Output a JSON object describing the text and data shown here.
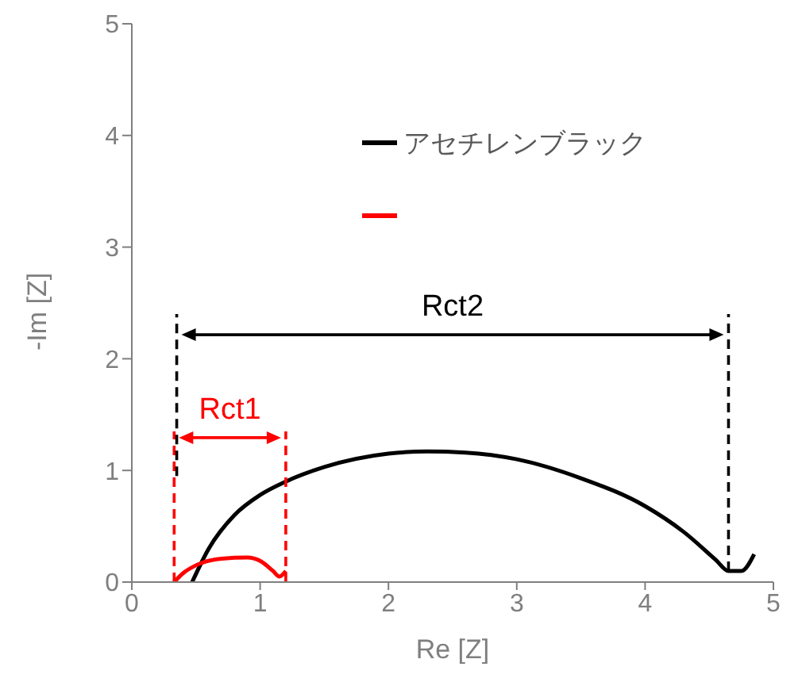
{
  "chart_data": {
    "type": "line",
    "xlabel": "Re [Z]",
    "ylabel": "-Im [Z]",
    "xlim": [
      0,
      5
    ],
    "xticks": [
      0,
      1,
      2,
      3,
      4,
      5
    ],
    "ylim": [
      0,
      5
    ],
    "yticks": [
      0,
      1,
      2,
      3,
      4,
      5
    ],
    "legend": "top right",
    "marker": "none",
    "series": [
      {
        "name": "アセチレンブラック",
        "color": "#000000",
        "x": [
          0.47,
          0.6,
          0.8,
          1.0,
          1.2,
          1.5,
          2.0,
          2.3,
          2.6,
          3.0,
          3.5,
          4.0,
          4.3,
          4.55,
          4.65,
          4.75,
          4.85
        ],
        "values": [
          0,
          0.3,
          0.6,
          0.78,
          0.9,
          1.03,
          1.15,
          1.17,
          1.16,
          1.1,
          0.93,
          0.68,
          0.45,
          0.2,
          0.1,
          0.1,
          0.25
        ]
      },
      {
        "color": "#ff0000",
        "x": [
          0.33,
          0.4,
          0.5,
          0.7,
          0.9,
          1.0,
          1.1,
          1.15,
          1.2
        ],
        "values": [
          0,
          0.08,
          0.15,
          0.21,
          0.22,
          0.19,
          0.1,
          0.05,
          0.1
        ]
      },
      {
        "type": "line",
        "line_style": "dashed",
        "color": "#ff0000",
        "x": [
          0.33,
          0.33
        ],
        "values": [
          0,
          1.35
        ]
      },
      {
        "type": "line",
        "line_style": "dashed",
        "color": "#ff0000",
        "x": [
          1.2,
          1.2
        ],
        "values": [
          0,
          1.35
        ]
      },
      {
        "type": "line",
        "line_style": "dashed",
        "color": "#000000",
        "x": [
          0.35,
          0.35
        ],
        "values": [
          0.95,
          2.4
        ]
      },
      {
        "type": "line",
        "line_style": "dashed",
        "color": "#000000",
        "x": [
          4.65,
          4.65
        ],
        "values": [
          0.1,
          2.4
        ]
      }
    ],
    "annotations": [
      "Rct1",
      "Rct2"
    ]
  }
}
